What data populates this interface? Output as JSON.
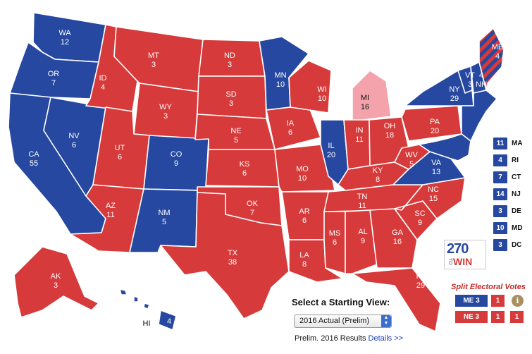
{
  "colors": {
    "republican": "#d63a3a",
    "democrat": "#2648a0",
    "tossup": "#f4a3ad"
  },
  "states": {
    "WA": {
      "label": "WA",
      "votes": "12",
      "party": "D"
    },
    "OR": {
      "label": "OR",
      "votes": "7",
      "party": "D"
    },
    "CA": {
      "label": "CA",
      "votes": "55",
      "party": "D"
    },
    "NV": {
      "label": "NV",
      "votes": "6",
      "party": "D"
    },
    "ID": {
      "label": "ID",
      "votes": "4",
      "party": "R"
    },
    "MT": {
      "label": "MT",
      "votes": "3",
      "party": "R"
    },
    "WY": {
      "label": "WY",
      "votes": "3",
      "party": "R"
    },
    "UT": {
      "label": "UT",
      "votes": "6",
      "party": "R"
    },
    "AZ": {
      "label": "AZ",
      "votes": "11",
      "party": "R"
    },
    "CO": {
      "label": "CO",
      "votes": "9",
      "party": "D"
    },
    "NM": {
      "label": "NM",
      "votes": "5",
      "party": "D"
    },
    "ND": {
      "label": "ND",
      "votes": "3",
      "party": "R"
    },
    "SD": {
      "label": "SD",
      "votes": "3",
      "party": "R"
    },
    "NE": {
      "label": "NE",
      "votes": "5",
      "party": "R"
    },
    "KS": {
      "label": "KS",
      "votes": "6",
      "party": "R"
    },
    "OK": {
      "label": "OK",
      "votes": "7",
      "party": "R"
    },
    "TX": {
      "label": "TX",
      "votes": "38",
      "party": "R"
    },
    "MN": {
      "label": "MN",
      "votes": "10",
      "party": "D"
    },
    "IA": {
      "label": "IA",
      "votes": "6",
      "party": "R"
    },
    "MO": {
      "label": "MO",
      "votes": "10",
      "party": "R"
    },
    "AR": {
      "label": "AR",
      "votes": "6",
      "party": "R"
    },
    "LA": {
      "label": "LA",
      "votes": "8",
      "party": "R"
    },
    "WI": {
      "label": "WI",
      "votes": "10",
      "party": "R"
    },
    "IL": {
      "label": "IL",
      "votes": "20",
      "party": "D"
    },
    "MI": {
      "label": "MI",
      "votes": "16",
      "party": "T"
    },
    "IN": {
      "label": "IN",
      "votes": "11",
      "party": "R"
    },
    "OH": {
      "label": "OH",
      "votes": "18",
      "party": "R"
    },
    "KY": {
      "label": "KY",
      "votes": "8",
      "party": "R"
    },
    "TN": {
      "label": "TN",
      "votes": "11",
      "party": "R"
    },
    "MS": {
      "label": "MS",
      "votes": "6",
      "party": "R"
    },
    "AL": {
      "label": "AL",
      "votes": "9",
      "party": "R"
    },
    "GA": {
      "label": "GA",
      "votes": "16",
      "party": "R"
    },
    "FL": {
      "label": "FL",
      "votes": "29",
      "party": "R"
    },
    "SC": {
      "label": "SC",
      "votes": "9",
      "party": "R"
    },
    "NC": {
      "label": "NC",
      "votes": "15",
      "party": "R"
    },
    "VA": {
      "label": "VA",
      "votes": "13",
      "party": "D"
    },
    "WV": {
      "label": "WV",
      "votes": "5",
      "party": "R"
    },
    "PA": {
      "label": "PA",
      "votes": "20",
      "party": "R"
    },
    "NY": {
      "label": "NY",
      "votes": "29",
      "party": "D"
    },
    "VT": {
      "label": "VT",
      "votes": "3",
      "party": "D"
    },
    "NH": {
      "label": "NH",
      "votes": "4",
      "party": "D"
    },
    "ME": {
      "label": "ME",
      "votes": "4",
      "party": "split"
    },
    "AK": {
      "label": "AK",
      "votes": "3",
      "party": "R"
    },
    "HI": {
      "label": "HI",
      "votes": "4",
      "party": "D"
    }
  },
  "small_states": [
    {
      "votes": "11",
      "label": "MA",
      "party": "D"
    },
    {
      "votes": "4",
      "label": "RI",
      "party": "D"
    },
    {
      "votes": "7",
      "label": "CT",
      "party": "D"
    },
    {
      "votes": "14",
      "label": "NJ",
      "party": "D"
    },
    {
      "votes": "3",
      "label": "DE",
      "party": "D"
    },
    {
      "votes": "10",
      "label": "MD",
      "party": "D"
    },
    {
      "votes": "3",
      "label": "DC",
      "party": "D"
    }
  ],
  "logo": {
    "number": "270",
    "to": "TO",
    "win": "WIN"
  },
  "split_votes": {
    "title": "Split Electoral Votes",
    "me": {
      "label": "ME 3",
      "d1": "1"
    },
    "ne": {
      "label": "NE 3",
      "d1": "1",
      "d2": "1"
    },
    "info_icon": "i"
  },
  "starting_view": {
    "title": "Select a Starting View:",
    "selected": "2016 Actual (Prelim)"
  },
  "prelim": {
    "text": "Prelim. 2016 Results ",
    "link": "Details >>"
  }
}
